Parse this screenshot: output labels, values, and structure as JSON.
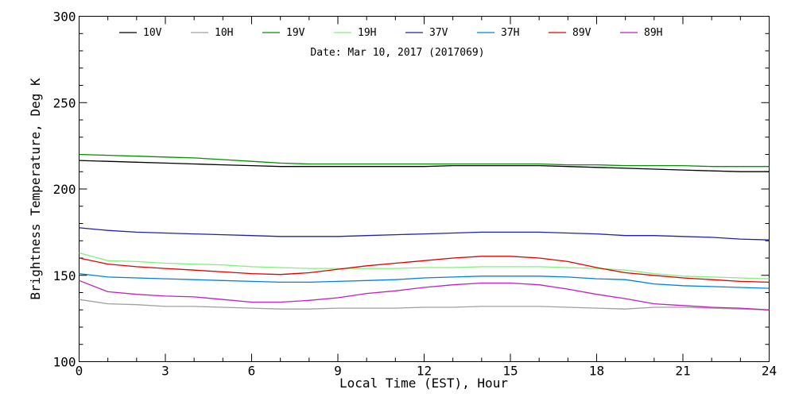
{
  "chart_data": {
    "type": "line",
    "annotation": "Date: Mar 10, 2017 (2017069)",
    "xlabel": "Local Time (EST), Hour",
    "ylabel": "Brightness Temperature, Deg K",
    "xlim": [
      0,
      24
    ],
    "ylim": [
      100,
      300
    ],
    "xticks": [
      "0",
      "3",
      "6",
      "9",
      "12",
      "15",
      "18",
      "21",
      "24"
    ],
    "yticks": [
      "100",
      "150",
      "200",
      "250",
      "300"
    ],
    "grid": false,
    "legend_position": "top",
    "series": [
      {
        "name": "10V",
        "color": "#000000",
        "x": [
          0,
          1,
          2,
          3,
          4,
          5,
          6,
          7,
          8,
          9,
          10,
          11,
          12,
          13,
          14,
          15,
          16,
          17,
          18,
          19,
          20,
          21,
          22,
          23,
          24
        ],
        "values": [
          216.5,
          216,
          215.5,
          215,
          214.5,
          214,
          213.5,
          213,
          213,
          213,
          213,
          213,
          213,
          213.5,
          213.5,
          213.5,
          213.5,
          213,
          212.5,
          212,
          211.5,
          211,
          210.5,
          210,
          210
        ]
      },
      {
        "name": "10H",
        "color": "#a0a0a0",
        "x": [
          0,
          1,
          2,
          3,
          4,
          5,
          6,
          7,
          8,
          9,
          10,
          11,
          12,
          13,
          14,
          15,
          16,
          17,
          18,
          19,
          20,
          21,
          22,
          23,
          24
        ],
        "values": [
          136,
          133.5,
          133,
          132,
          132,
          131.5,
          131,
          130.5,
          130.5,
          131,
          131,
          131,
          131.5,
          131.5,
          132,
          132,
          132,
          131.5,
          131,
          130.5,
          131.5,
          131.5,
          131,
          130.5,
          130
        ]
      },
      {
        "name": "19V",
        "color": "#009000",
        "x": [
          0,
          1,
          2,
          3,
          4,
          5,
          6,
          7,
          8,
          9,
          10,
          11,
          12,
          13,
          14,
          15,
          16,
          17,
          18,
          19,
          20,
          21,
          22,
          23,
          24
        ],
        "values": [
          220,
          219.5,
          219,
          218.5,
          218,
          217,
          216,
          215,
          214.5,
          214.5,
          214.5,
          214.5,
          214.5,
          214.5,
          214.5,
          214.5,
          214.5,
          214,
          214,
          213.5,
          213.5,
          213.5,
          213,
          213,
          213
        ]
      },
      {
        "name": "19H",
        "color": "#80f080",
        "x": [
          0,
          1,
          2,
          3,
          4,
          5,
          6,
          7,
          8,
          9,
          10,
          11,
          12,
          13,
          14,
          15,
          16,
          17,
          18,
          19,
          20,
          21,
          22,
          23,
          24
        ],
        "values": [
          163,
          158.5,
          158,
          157,
          156.5,
          156,
          155,
          154.5,
          154,
          154,
          154,
          154,
          154.5,
          154.5,
          155,
          155,
          155,
          154.5,
          154,
          153,
          151,
          149.5,
          149,
          148.5,
          148
        ]
      },
      {
        "name": "37V",
        "color": "#2020b0",
        "x": [
          0,
          1,
          2,
          3,
          4,
          5,
          6,
          7,
          8,
          9,
          10,
          11,
          12,
          13,
          14,
          15,
          16,
          17,
          18,
          19,
          20,
          21,
          22,
          23,
          24
        ],
        "values": [
          177.5,
          176,
          175,
          174.5,
          174,
          173.5,
          173,
          172.5,
          172.5,
          172.5,
          173,
          173.5,
          174,
          174.5,
          175,
          175,
          175,
          174.5,
          174,
          173,
          173,
          172.5,
          172,
          171,
          170.5
        ]
      },
      {
        "name": "37H",
        "color": "#0080e0",
        "x": [
          0,
          1,
          2,
          3,
          4,
          5,
          6,
          7,
          8,
          9,
          10,
          11,
          12,
          13,
          14,
          15,
          16,
          17,
          18,
          19,
          20,
          21,
          22,
          23,
          24
        ],
        "values": [
          151,
          149,
          148.5,
          148,
          147.5,
          147,
          146.5,
          146,
          146,
          146.5,
          147,
          147.5,
          148.5,
          149,
          149.5,
          149.5,
          149.5,
          149,
          148,
          147.5,
          145,
          144,
          143.5,
          143,
          142.5
        ]
      },
      {
        "name": "89V",
        "color": "#e00000",
        "x": [
          0,
          1,
          2,
          3,
          4,
          5,
          6,
          7,
          8,
          9,
          10,
          11,
          12,
          13,
          14,
          15,
          16,
          17,
          18,
          19,
          20,
          21,
          22,
          23,
          24
        ],
        "values": [
          160,
          156.5,
          155,
          154,
          153,
          152,
          151,
          150.5,
          151.5,
          153.5,
          155.5,
          157,
          158.5,
          160,
          161,
          161,
          160,
          158,
          154.5,
          151.5,
          150,
          148.5,
          147.5,
          146.5,
          146
        ]
      },
      {
        "name": "89H",
        "color": "#c020c0",
        "x": [
          0,
          1,
          2,
          3,
          4,
          5,
          6,
          7,
          8,
          9,
          10,
          11,
          12,
          13,
          14,
          15,
          16,
          17,
          18,
          19,
          20,
          21,
          22,
          23,
          24
        ],
        "values": [
          147,
          140.5,
          139,
          138,
          137.5,
          136,
          134.5,
          134.5,
          135.5,
          137,
          139.5,
          141,
          143,
          144.5,
          145.5,
          145.5,
          144.5,
          142,
          139,
          136.5,
          133.5,
          132.5,
          131.5,
          131,
          130
        ]
      }
    ]
  }
}
